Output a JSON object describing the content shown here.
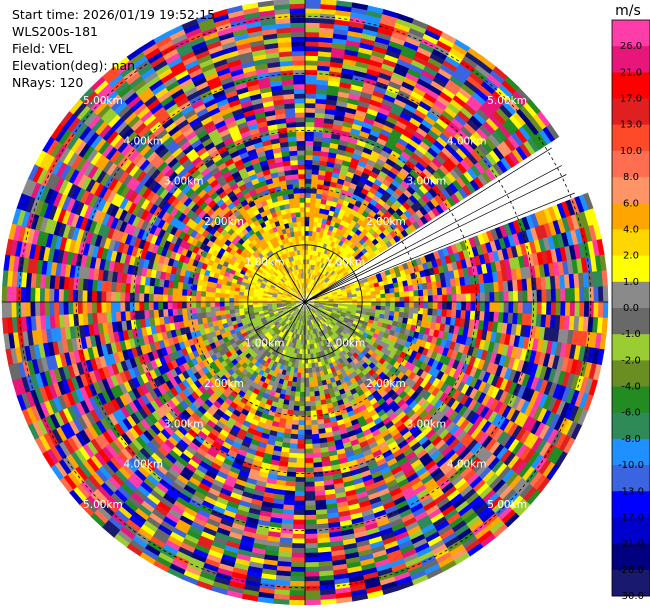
{
  "info": {
    "start_time": "Start time: 2026/01/19 19:52:15",
    "instrument": "WLS200s-181",
    "field": "Field: VEL",
    "elevation": "Elevation(deg): nan",
    "nrays": "NRays: 120"
  },
  "chart_data": {
    "type": "heatmap",
    "projection": "polar-ppi",
    "field": "VEL",
    "nrays": 120,
    "ring_labels": [
      "1.00km",
      "2.00km",
      "3.00km",
      "4.00km",
      "5.00km"
    ],
    "ring_ranges_km": [
      1,
      2,
      3,
      4,
      5
    ],
    "max_range_km": 5.3,
    "grid": true,
    "missing_sector_azimuths_deg": [
      [
        58,
        62
      ],
      [
        64,
        68
      ]
    ],
    "colorbar": {
      "title": "m/s",
      "tick_labels": [
        "26.0",
        "21.0",
        "17.0",
        "13.0",
        "10.0",
        "8.0",
        "6.0",
        "4.0",
        "2.0",
        "1.0",
        "0.0",
        "-1.0",
        "-2.0",
        "-4.0",
        "-6.0",
        "-8.0",
        "-10.0",
        "-13.0",
        "-17.0",
        "-21.0",
        "-26.0",
        "-30.0"
      ],
      "colors_top_to_bottom": [
        "#ff3da8",
        "#e8157a",
        "#ff0000",
        "#e02020",
        "#ff4a2a",
        "#ff6e50",
        "#ff9466",
        "#ffa500",
        "#ffd700",
        "#ffff00",
        "#8a8a8a",
        "#696969",
        "#9acd32",
        "#6b8e23",
        "#228b22",
        "#2e8b57",
        "#1e90ff",
        "#3a64e0",
        "#0000ff",
        "#0000cd",
        "#000080",
        "#191970"
      ]
    }
  }
}
